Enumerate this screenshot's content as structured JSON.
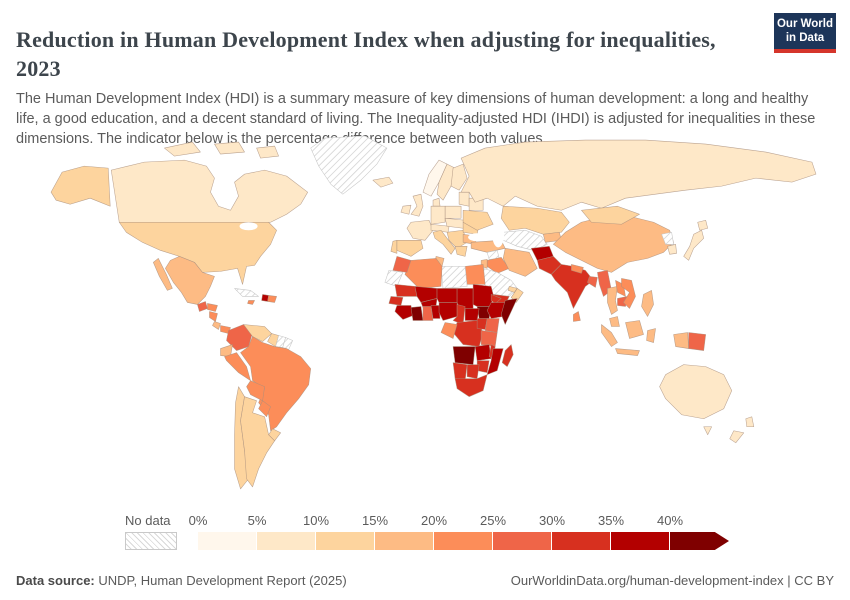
{
  "header": {
    "title": "Reduction in Human Development Index when adjusting for inequalities, 2023",
    "subtitle": "The Human Development Index (HDI) is a summary measure of key dimensions of human development: a long and healthy life, a good education, and a decent standard of living. The Inequality-adjusted HDI (IHDI) is adjusted for inequalities in these dimensions. The indicator below is the percentage difference between both values.",
    "logo": {
      "line1": "Our World",
      "line2": "in Data",
      "bg_color": "#1d3559",
      "accent_color": "#d5352b"
    }
  },
  "legend": {
    "no_data_label": "No data",
    "tick_labels": [
      "0%",
      "5%",
      "10%",
      "15%",
      "20%",
      "25%",
      "30%",
      "35%",
      "40%"
    ],
    "colors": [
      "#fff7ec",
      "#fee8c8",
      "#fdd49e",
      "#fdbb84",
      "#fc8d59",
      "#ef6548",
      "#d7301f",
      "#b30000",
      "#7f0000"
    ]
  },
  "footer": {
    "source_label": "Data source:",
    "source_text": " UNDP, Human Development Report (2025)",
    "right_text": "OurWorldinData.org/human-development-index | CC BY"
  },
  "chart_data": {
    "type": "heatmap",
    "subtype": "world-choropleth",
    "title": "Reduction in Human Development Index when adjusting for inequalities, 2023",
    "unit": "%",
    "bins": {
      "thresholds": [
        0,
        5,
        10,
        15,
        20,
        25,
        30,
        35,
        40
      ],
      "labels": [
        "0%",
        "5%",
        "10%",
        "15%",
        "20%",
        "25%",
        "30%",
        "35%",
        "40%"
      ],
      "open_ended_top": true
    },
    "no_data_label": "No data",
    "values": {
      "Canada": 6.5,
      "United States": 11.5,
      "Mexico": 19,
      "Guatemala": 25.5,
      "Honduras": 22,
      "Nicaragua": 22.5,
      "Costa Rica": 16.5,
      "Panama": 21,
      "Cuba": null,
      "Jamaica": 21,
      "Haiti": 37,
      "Dominican Republic": 21,
      "Greenland": null,
      "Iceland": 5.5,
      "Colombia": 25.5,
      "Venezuela": 13.5,
      "Guyana": 14,
      "Suriname": null,
      "French Guiana": null,
      "Ecuador": 18.5,
      "Peru": 21,
      "Brazil": 23,
      "Bolivia": 24,
      "Paraguay": 22,
      "Chile": 13.5,
      "Argentina": 13,
      "Uruguay": 12.5,
      "Ireland": 6,
      "United Kingdom": 8,
      "Norway": 4.5,
      "Sweden": 5.5,
      "Finland": 5.5,
      "Denmark": 5,
      "Baltic states": 7,
      "Belarus": 6.5,
      "Poland": 6.5,
      "Germany": 6.5,
      "France": 7.5,
      "Spain": 11,
      "Portugal": 10.5,
      "Central Europe": 6.5,
      "Alpine states": 6,
      "Italy": 10.5,
      "Balkans": 12.5,
      "Romania": 11,
      "Bulgaria": 15.5,
      "Greece": 11.5,
      "Ukraine": 10.5,
      "Russia": 9.5,
      "Turkey": 16,
      "Kazakhstan": 11,
      "Turkmenistan and Uzbekistan": null,
      "Kyrgyzstan and Tajikistan": 16.5,
      "Afghanistan": 38,
      "Pakistan": 31,
      "India": 31,
      "Nepal": 22,
      "Bangladesh": 26.5,
      "Sri Lanka": 21.5,
      "China": 16,
      "Mongolia": 12.5,
      "North Korea": null,
      "South Korea": 8,
      "Japan": 6.5,
      "Syria": null,
      "Iraq": 22.5,
      "Iran": 18,
      "Jordan": 16,
      "Saudi Arabia": null,
      "Yemen": 32,
      "Oman": 13.5,
      "United Arab Emirates": 12,
      "Egypt": 24,
      "Libya": null,
      "Tunisia": 17.5,
      "Algeria": 22.5,
      "Morocco": 27.5,
      "Western Sahara": null,
      "Mauritania": 32,
      "Mali": 37.5,
      "Burkina Faso": 37.5,
      "Niger": 37,
      "Chad": 39,
      "Sudan": 36,
      "South Sudan": 43,
      "Eritrea": 33,
      "Ethiopia": 36,
      "Somalia": 42,
      "Senegal": 32,
      "Guinea": 36,
      "Cote d'Ivoire": 41,
      "Ghana": 27.5,
      "Togo and Benin": 36,
      "Nigeria": 36.5,
      "Cameroon": 33,
      "Central African Republic": 39,
      "Democratic Republic of Congo": 32,
      "Congo and Gabon": 22,
      "Uganda": 31,
      "Kenya": 26,
      "Tanzania": 27,
      "Angola": 42,
      "Zambia": 36.5,
      "Malawi": 31,
      "Mozambique": 36,
      "Zimbabwe": 31,
      "Botswana": 32,
      "Namibia": 33.5,
      "South Africa": 31,
      "Madagascar": 31,
      "Myanmar": 27,
      "Thailand": 17,
      "Laos": 23.5,
      "Cambodia": 26,
      "Vietnam": 21.5,
      "Malaysia": 17.5,
      "Indonesia": 18.5,
      "Philippines": 19,
      "Papua New Guinea": 26.5,
      "Australia": 7,
      "New Zealand": 7.5
    }
  }
}
